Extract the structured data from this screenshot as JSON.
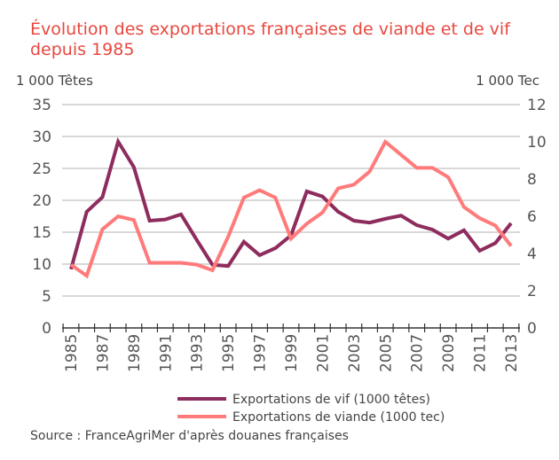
{
  "chart_data": {
    "type": "line",
    "title": "Évolution des exportations françaises de viande et de vif depuis 1985",
    "y_left_label": "1 000 Têtes",
    "y_right_label": "1 000 Tec",
    "y_left_range": [
      0,
      35
    ],
    "y_right_range": [
      0,
      12
    ],
    "y_left_ticks": [
      "0",
      "5",
      "10",
      "15",
      "20",
      "25",
      "30",
      "35"
    ],
    "y_right_ticks": [
      "0",
      "2",
      "4",
      "6",
      "8",
      "10",
      "12"
    ],
    "x": [
      1985,
      1986,
      1987,
      1988,
      1989,
      1990,
      1991,
      1992,
      1993,
      1994,
      1995,
      1996,
      1997,
      1998,
      1999,
      2000,
      2001,
      2002,
      2003,
      2004,
      2005,
      2006,
      2007,
      2008,
      2009,
      2010,
      2011,
      2012,
      2013
    ],
    "x_tick_labels": [
      "1985",
      "1987",
      "1989",
      "1991",
      "1993",
      "1995",
      "1997",
      "1999",
      "2001",
      "2003",
      "2005",
      "2007",
      "2009",
      "2011",
      "2013"
    ],
    "grid": true,
    "legend_position": "bottom",
    "series": [
      {
        "name": "Exportations de vif (1000 têtes)",
        "axis": "left",
        "color": "#8e2c5e",
        "values": [
          9.2,
          18.2,
          20.5,
          29.2,
          25.2,
          16.8,
          17.0,
          17.8,
          13.8,
          9.9,
          9.7,
          13.5,
          11.4,
          12.5,
          14.5,
          21.4,
          20.6,
          18.2,
          16.8,
          16.5,
          17.1,
          17.6,
          16.1,
          15.4,
          14.0,
          15.3,
          12.1,
          13.3,
          16.4
        ]
      },
      {
        "name": "Exportations de viande (1000 tec)",
        "axis": "right",
        "color": "#ff7b7b",
        "values": [
          3.4,
          2.8,
          5.3,
          6.0,
          5.8,
          3.5,
          3.5,
          3.5,
          3.4,
          3.1,
          4.9,
          7.0,
          7.4,
          7.0,
          4.8,
          5.6,
          6.2,
          7.5,
          7.7,
          8.4,
          10.0,
          9.3,
          8.6,
          8.6,
          8.1,
          6.5,
          5.9,
          5.5,
          4.4
        ]
      }
    ],
    "source": "Source : FranceAgriMer d'après douanes françaises"
  }
}
